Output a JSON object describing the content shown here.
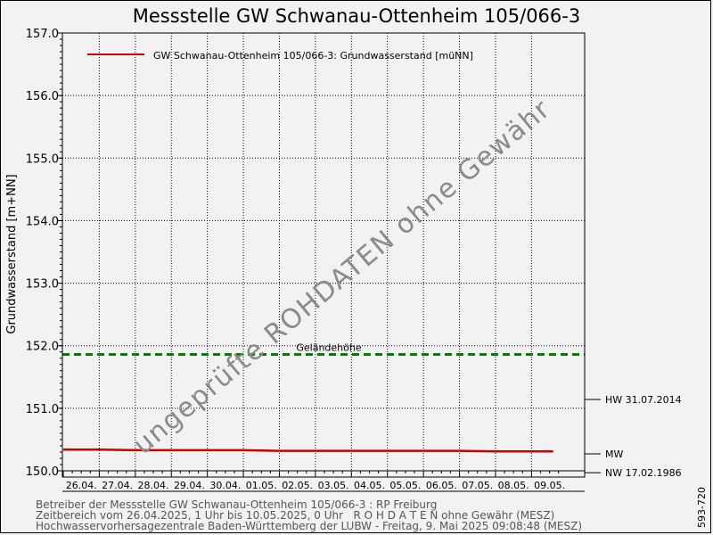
{
  "chart_data": {
    "type": "line",
    "title": "Messstelle GW Schwanau-Ottenheim 105/066-3",
    "ylabel": "Grundwasserstand [m+NN]",
    "xlabel": "",
    "ylim": [
      150.0,
      157.0
    ],
    "y_ticks": [
      "150.0",
      "151.0",
      "152.0",
      "153.0",
      "154.0",
      "155.0",
      "156.0",
      "157.0"
    ],
    "categories": [
      "26.04.",
      "27.04.",
      "28.04.",
      "29.04.",
      "30.04.",
      "01.05.",
      "02.05.",
      "03.05.",
      "04.05.",
      "05.05.",
      "06.05.",
      "07.05.",
      "08.05.",
      "09.05."
    ],
    "grid": true,
    "legend_position": "top-left",
    "series": [
      {
        "name": "GW Schwanau-Ottenheim 105/066-3: Grundwasserstand  [müNN]",
        "color": "#cc0000",
        "x": [
          0,
          1,
          2,
          3,
          4,
          5,
          6,
          7,
          8,
          9,
          10,
          11,
          12,
          13,
          13.6
        ],
        "values": [
          150.34,
          150.34,
          150.33,
          150.33,
          150.33,
          150.33,
          150.32,
          150.32,
          150.32,
          150.32,
          150.32,
          150.32,
          150.31,
          150.31,
          150.31
        ]
      }
    ],
    "reference_lines": [
      {
        "label": "Geländehöhe",
        "value": 151.86,
        "color": "#008000",
        "style": "dashed"
      }
    ],
    "right_markers": [
      {
        "label": "HW 31.07.2014",
        "value": 151.14
      },
      {
        "label": "MW",
        "value": 150.27
      },
      {
        "label": "NW 17.02.1986",
        "value": 149.97
      }
    ],
    "watermark": "ungeprüfte ROHDATEN ohne Gewähr"
  },
  "footer": {
    "line1": "Betreiber der Messstelle GW Schwanau-Ottenheim 105/066-3 : RP Freiburg",
    "line2": "Zeitbereich vom 26.04.2025, 1 Uhr bis 10.05.2025, 0 Uhr   R O H D A T E N ohne Gewähr (MESZ)",
    "line3": "Hochwasservorhersagezentrale Baden-Württemberg der LUBW - Freitag, 9. Mai 2025 09:08:48 (MESZ)"
  },
  "side_code": "593-720"
}
